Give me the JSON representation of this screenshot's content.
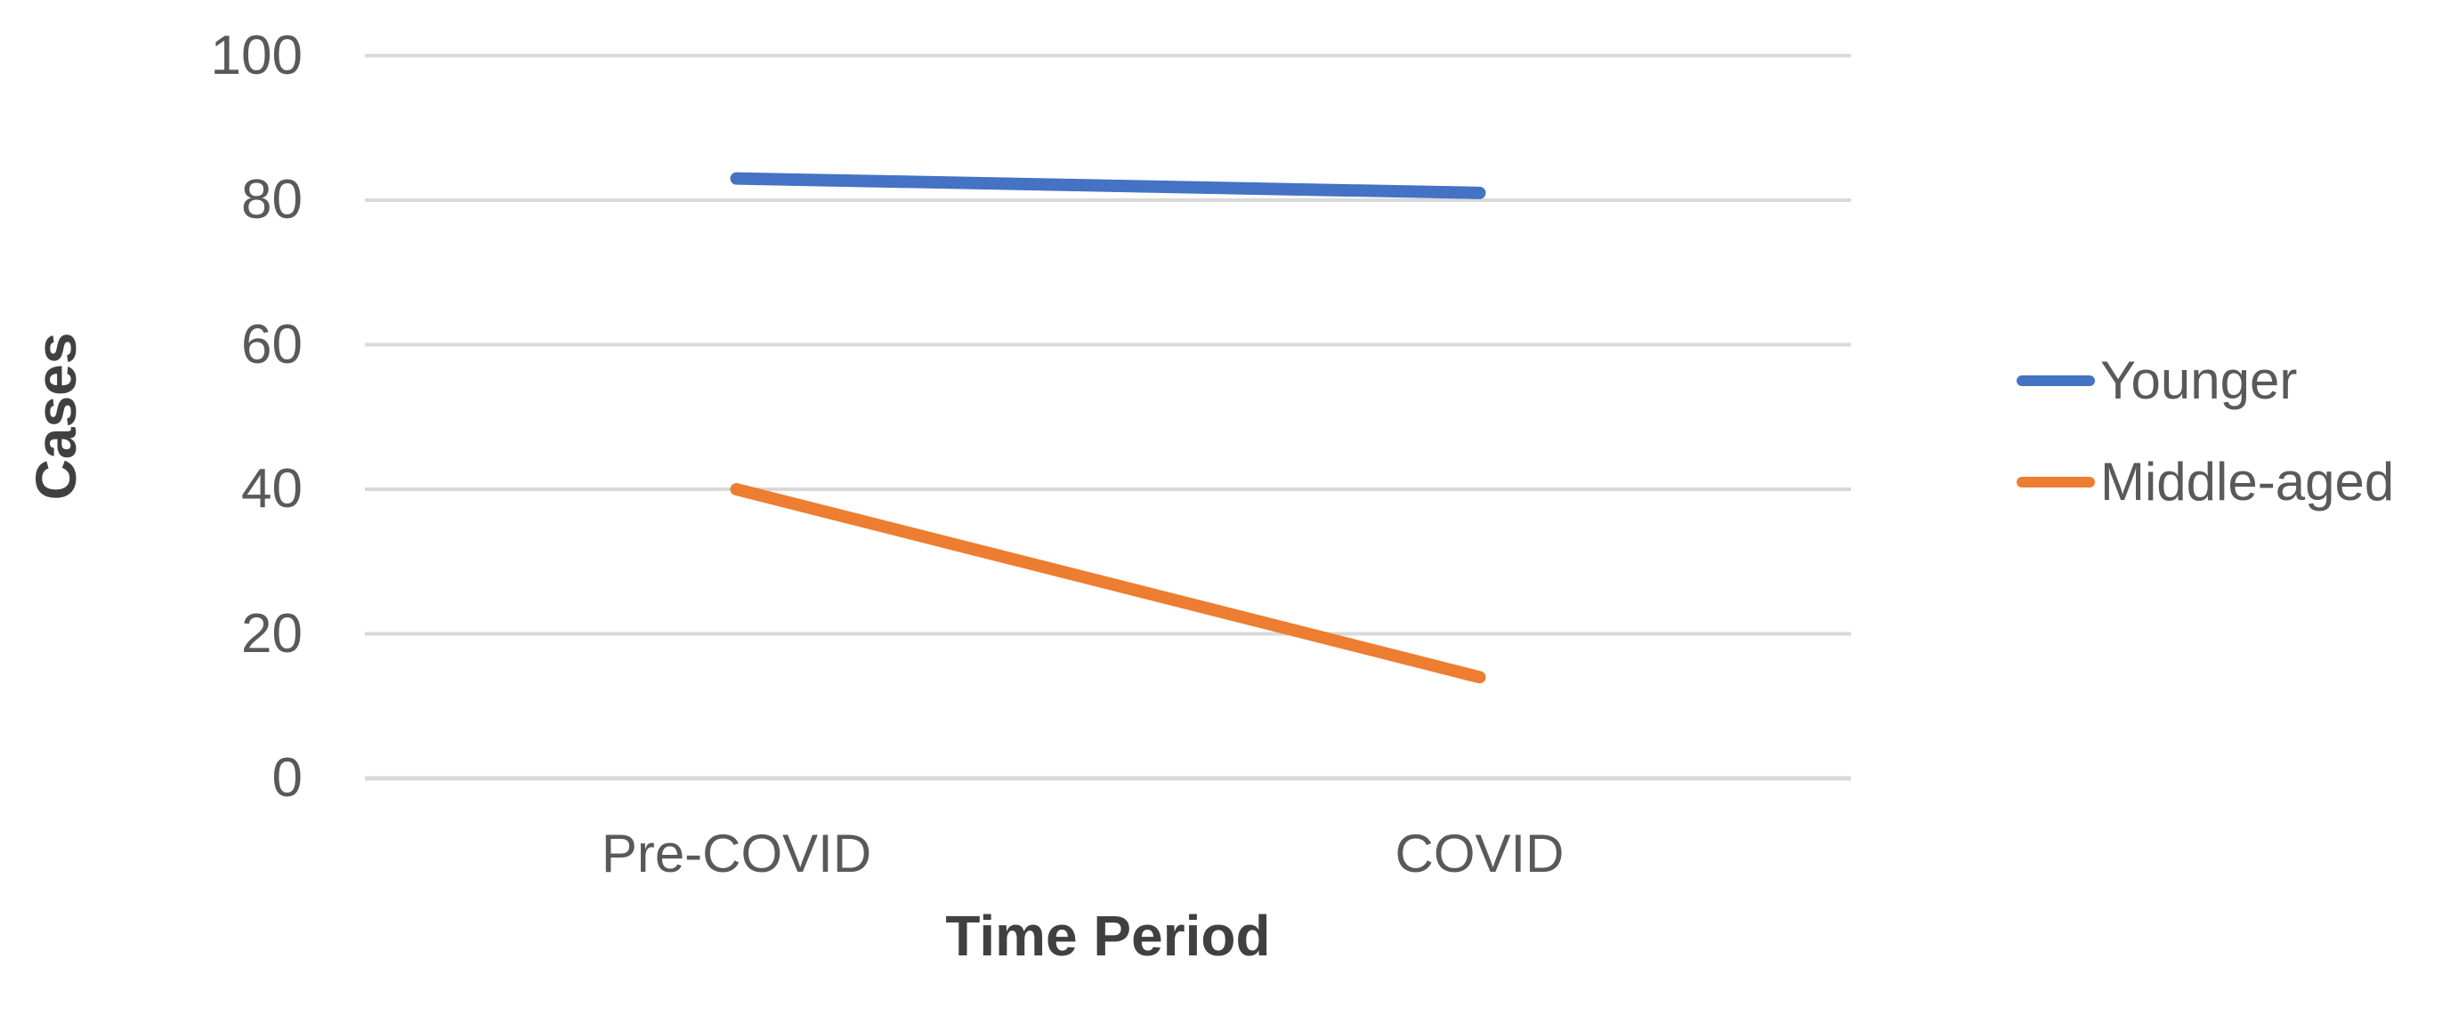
{
  "chart_data": {
    "type": "line",
    "title": "",
    "xlabel": "Time Period",
    "ylabel": "Cases",
    "categories": [
      "Pre-COVID",
      "COVID"
    ],
    "series": [
      {
        "name": "Younger",
        "values": [
          83,
          81
        ],
        "color": "#4472C4"
      },
      {
        "name": "Middle-aged",
        "values": [
          40,
          14
        ],
        "color": "#ED7D31"
      }
    ],
    "y_ticks": [
      0,
      20,
      40,
      60,
      80,
      100
    ],
    "ylim": [
      0,
      100
    ],
    "grid": true,
    "legend_position": "right",
    "colors": {
      "gridline": "#D9D9D9",
      "tick_text": "#595959",
      "axis_title_text": "#404040",
      "background": "#FFFFFF"
    }
  }
}
